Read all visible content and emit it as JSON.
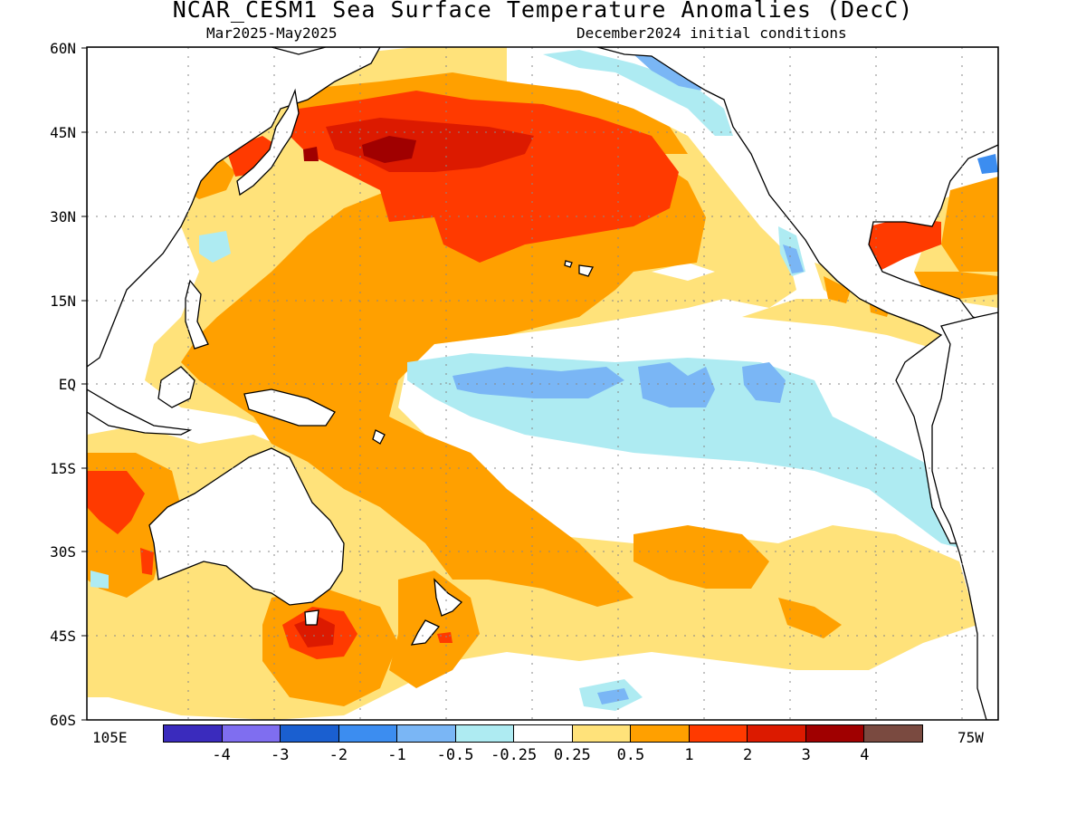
{
  "title": "NCAR_CESM1 Sea Surface Temperature Anomalies (DecC)",
  "subtitle_left": "Mar2025-May2025",
  "subtitle_right": "December2024 initial conditions",
  "y_axis_labels": [
    "60N",
    "45N",
    "30N",
    "15N",
    "EQ",
    "15S",
    "30S",
    "45S",
    "60S"
  ],
  "x_axis_labels": [
    "105E",
    "75W"
  ],
  "colorbar": {
    "colors": [
      "#3a2bbd",
      "#7f6ef0",
      "#1a5fd0",
      "#3c8df0",
      "#7ab6f5",
      "#aeebf2",
      "#ffffff",
      "#ffe27a",
      "#ffa000",
      "#ff3a00",
      "#dc1a00",
      "#a00000",
      "#7a4a40"
    ],
    "labels": [
      "-4",
      "-3",
      "-2",
      "-1",
      "-0.5",
      "-0.25",
      "0.25",
      "0.5",
      "1",
      "2",
      "3",
      "4"
    ]
  },
  "chart_data": {
    "type": "heatmap",
    "title": "NCAR_CESM1 Sea Surface Temperature Anomalies (DecC)",
    "period": "Mar2025-May2025",
    "initialization": "December2024 initial conditions",
    "lat_range": [
      "60S",
      "60N"
    ],
    "lon_range": [
      "105E",
      "75W"
    ],
    "units": "DecC",
    "contour_levels": [
      -4,
      -3,
      -2,
      -1,
      -0.5,
      -0.25,
      0.25,
      0.5,
      1,
      2,
      3,
      4
    ],
    "features": [
      {
        "region": "North Pacific (~40N, 150E-150W)",
        "anomaly_range": "1 to 3"
      },
      {
        "region": "Northwest Pacific near Japan",
        "anomaly_range": "2 to 3"
      },
      {
        "region": "Western tropical Pacific / warm pool",
        "anomaly_range": "0.5 to 1"
      },
      {
        "region": "Central-eastern equatorial Pacific",
        "anomaly_range": "-1 to -0.25"
      },
      {
        "region": "Gulf of Mexico",
        "anomaly_range": "1 to 2"
      },
      {
        "region": "South of Australia / Tasmania (~45S)",
        "anomaly_range": "1 to 3"
      },
      {
        "region": "Off western Australia (~20S)",
        "anomaly_range": "1 to 2"
      },
      {
        "region": "Southern mid-latitude Pacific band",
        "anomaly_range": "0.25 to 1"
      }
    ]
  }
}
